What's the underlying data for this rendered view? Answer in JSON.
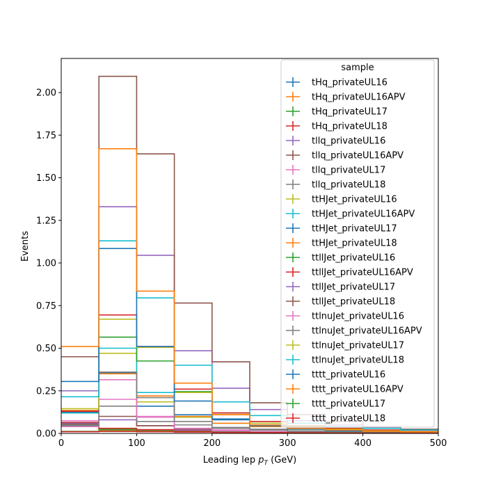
{
  "chart_data": {
    "type": "step-histogram",
    "xlabel": "Leading lep",
    "xlabel_sub": "T",
    "xlabel_unit": "(GeV)",
    "ylabel": "Events",
    "xlim": [
      0,
      500
    ],
    "ylim": [
      0,
      2.2
    ],
    "x_ticks": [
      0,
      100,
      200,
      300,
      400,
      500
    ],
    "y_ticks": [
      "0.00",
      "0.25",
      "0.50",
      "0.75",
      "1.00",
      "1.25",
      "1.50",
      "1.75",
      "2.00"
    ],
    "bin_edges": [
      0,
      50,
      100,
      150,
      200,
      250,
      300,
      350,
      400,
      450,
      500
    ],
    "legend": {
      "title": "sample",
      "location": "upper right"
    },
    "series": [
      {
        "name": "tHq_privateUL16",
        "color": "#1f77b4",
        "values": [
          0.05,
          0.02,
          0.015,
          0.01,
          0.008,
          0.006,
          0.005,
          0.004,
          0.003,
          0.002
        ]
      },
      {
        "name": "tHq_privateUL16APV",
        "color": "#ff7f0e",
        "values": [
          0.045,
          0.018,
          0.013,
          0.009,
          0.007,
          0.005,
          0.004,
          0.003,
          0.002,
          0.002
        ]
      },
      {
        "name": "tHq_privateUL17",
        "color": "#2ca02c",
        "values": [
          0.06,
          0.025,
          0.02,
          0.012,
          0.009,
          0.007,
          0.005,
          0.004,
          0.003,
          0.002
        ]
      },
      {
        "name": "tHq_privateUL18",
        "color": "#d62728",
        "values": [
          0.065,
          0.03,
          0.022,
          0.014,
          0.01,
          0.008,
          0.006,
          0.004,
          0.003,
          0.002
        ]
      },
      {
        "name": "tllq_privateUL16",
        "color": "#9467bd",
        "values": [
          0.06,
          0.08,
          0.045,
          0.02,
          0.012,
          0.008,
          0.005,
          0.004,
          0.003,
          0.002
        ]
      },
      {
        "name": "tllq_privateUL16APV",
        "color": "#8c564b",
        "values": [
          0.055,
          0.1,
          0.045,
          0.025,
          0.015,
          0.01,
          0.006,
          0.004,
          0.003,
          0.002
        ]
      },
      {
        "name": "tllq_privateUL17",
        "color": "#e377c2",
        "values": [
          0.075,
          0.2,
          0.1,
          0.03,
          0.02,
          0.012,
          0.008,
          0.005,
          0.003,
          0.002
        ]
      },
      {
        "name": "tllq_privateUL18",
        "color": "#7f7f7f",
        "values": [
          0.05,
          0.16,
          0.07,
          0.05,
          0.035,
          0.025,
          0.015,
          0.01,
          0.006,
          0.004
        ]
      },
      {
        "name": "ttHJet_privateUL16",
        "color": "#bcbd22",
        "values": [
          0.12,
          0.47,
          0.185,
          0.095,
          0.06,
          0.045,
          0.025,
          0.015,
          0.01,
          0.006
        ]
      },
      {
        "name": "ttHJet_privateUL16APV",
        "color": "#17becf",
        "values": [
          0.12,
          0.5,
          0.24,
          0.1,
          0.06,
          0.04,
          0.025,
          0.015,
          0.01,
          0.006
        ]
      },
      {
        "name": "ttHJet_privateUL17",
        "color": "#1f77b4",
        "values": [
          0.125,
          0.355,
          0.16,
          0.11,
          0.08,
          0.05,
          0.03,
          0.02,
          0.012,
          0.008
        ]
      },
      {
        "name": "ttHJet_privateUL18",
        "color": "#ff7f0e",
        "values": [
          0.135,
          0.35,
          0.22,
          0.1,
          0.06,
          0.04,
          0.025,
          0.015,
          0.01,
          0.006
        ]
      },
      {
        "name": "ttllJet_privateUL16",
        "color": "#2ca02c",
        "values": [
          0.13,
          0.565,
          0.425,
          0.245,
          0.12,
          0.06,
          0.04,
          0.025,
          0.015,
          0.01
        ]
      },
      {
        "name": "ttllJet_privateUL16APV",
        "color": "#d62728",
        "values": [
          0.13,
          0.695,
          0.51,
          0.26,
          0.12,
          0.07,
          0.045,
          0.03,
          0.02,
          0.012
        ]
      },
      {
        "name": "ttllJet_privateUL17",
        "color": "#9467bd",
        "values": [
          0.25,
          1.33,
          1.045,
          0.485,
          0.265,
          0.14,
          0.075,
          0.05,
          0.035,
          0.02
        ]
      },
      {
        "name": "ttllJet_privateUL18",
        "color": "#8c564b",
        "values": [
          0.45,
          2.095,
          1.64,
          0.765,
          0.42,
          0.18,
          0.11,
          0.07,
          0.04,
          0.025
        ]
      },
      {
        "name": "ttlnuJet_privateUL16",
        "color": "#e377c2",
        "values": [
          0.04,
          0.315,
          0.095,
          0.03,
          0.015,
          0.01,
          0.006,
          0.004,
          0.003,
          0.002
        ]
      },
      {
        "name": "ttlnuJet_privateUL16APV",
        "color": "#7f7f7f",
        "values": [
          0.045,
          0.36,
          0.21,
          0.07,
          0.03,
          0.02,
          0.012,
          0.008,
          0.005,
          0.003
        ]
      },
      {
        "name": "ttlnuJet_privateUL17",
        "color": "#bcbd22",
        "values": [
          0.145,
          0.67,
          0.505,
          0.24,
          0.11,
          0.06,
          0.04,
          0.025,
          0.015,
          0.01
        ]
      },
      {
        "name": "ttlnuJet_privateUL18",
        "color": "#17becf",
        "values": [
          0.215,
          1.13,
          0.795,
          0.4,
          0.185,
          0.105,
          0.06,
          0.04,
          0.03,
          0.02
        ]
      },
      {
        "name": "tttt_privateUL16",
        "color": "#1f77b4",
        "values": [
          0.305,
          1.085,
          0.51,
          0.19,
          0.085,
          0.045,
          0.025,
          0.015,
          0.01,
          0.006
        ]
      },
      {
        "name": "tttt_privateUL16APV",
        "color": "#ff7f0e",
        "values": [
          0.51,
          1.67,
          0.835,
          0.295,
          0.11,
          0.05,
          0.03,
          0.02,
          0.012,
          0.008
        ]
      },
      {
        "name": "tttt_privateUL17",
        "color": "#2ca02c",
        "values": [
          0.012,
          0.015,
          0.012,
          0.01,
          0.008,
          0.006,
          0.005,
          0.004,
          0.003,
          0.002
        ]
      },
      {
        "name": "tttt_privateUL18",
        "color": "#d62728",
        "values": [
          0.01,
          0.012,
          0.01,
          0.008,
          0.006,
          0.005,
          0.004,
          0.003,
          0.002,
          0.002
        ]
      }
    ]
  }
}
